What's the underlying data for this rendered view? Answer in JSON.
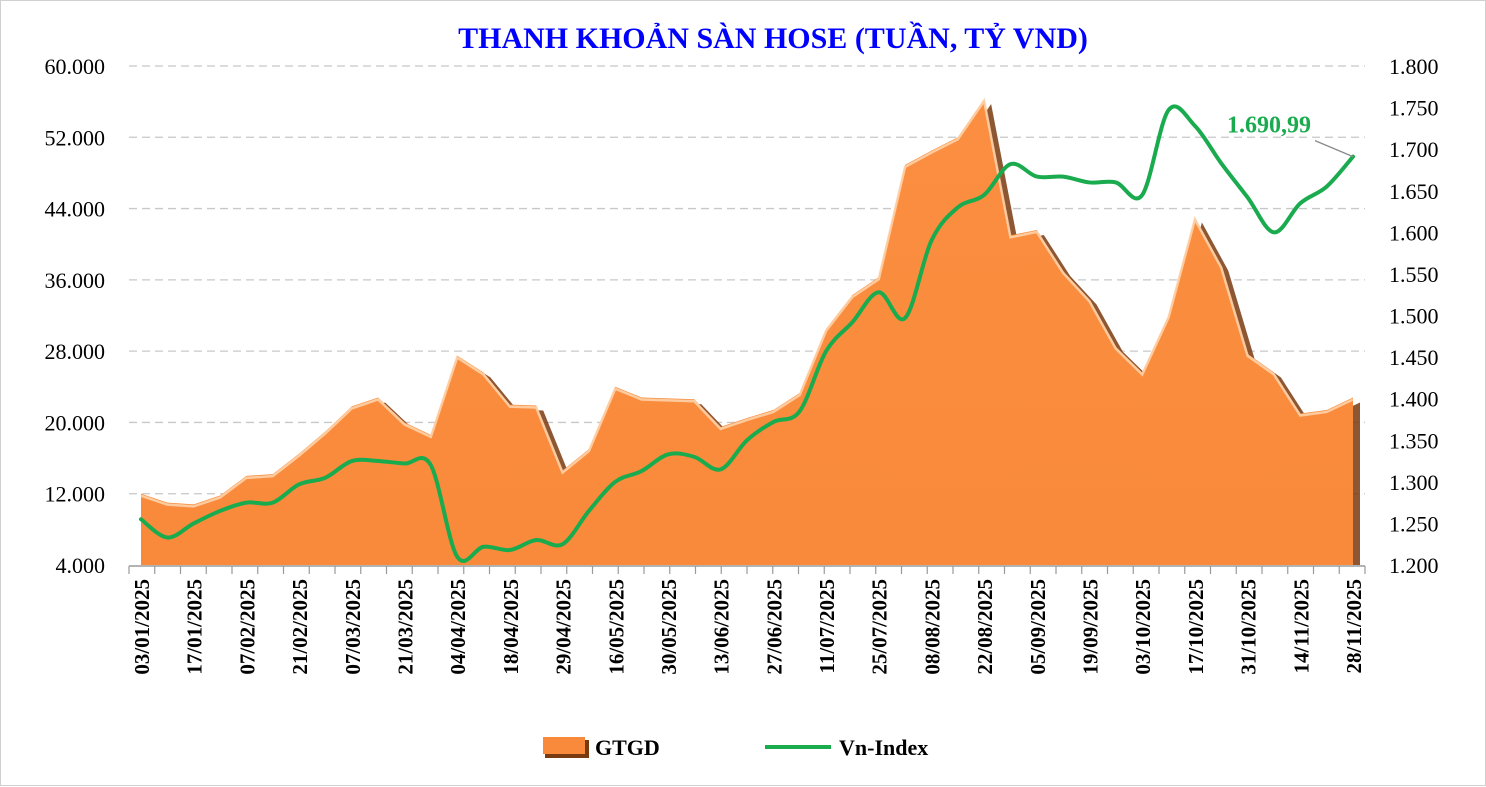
{
  "chart_data": {
    "type": "area",
    "title": "THANH KHOẢN SÀN HOSE (TUẦN, TỶ VND)",
    "colors": {
      "area": "#f98a3c",
      "area_dark": "#7a3a10",
      "line": "#1aab4f",
      "title": "#0000ff",
      "grid": "#c8c8c8"
    },
    "grid": true,
    "legend_position": "bottom",
    "left_axis": {
      "min": 4000,
      "max": 60000,
      "ticks": [
        "4.000",
        "12.000",
        "20.000",
        "28.000",
        "36.000",
        "44.000",
        "52.000",
        "60.000"
      ]
    },
    "right_axis": {
      "min": 1200,
      "max": 1800,
      "ticks": [
        "1.200",
        "1.250",
        "1.300",
        "1.350",
        "1.400",
        "1.450",
        "1.500",
        "1.550",
        "1.600",
        "1.650",
        "1.700",
        "1.750",
        "1.800"
      ]
    },
    "x_tick_labels": [
      "03/01/2025",
      "17/01/2025",
      "07/02/2025",
      "21/02/2025",
      "07/03/2025",
      "21/03/2025",
      "04/04/2025",
      "18/04/2025",
      "29/04/2025",
      "16/05/2025",
      "30/05/2025",
      "13/06/2025",
      "27/06/2025",
      "11/07/2025",
      "25/07/2025",
      "08/08/2025",
      "22/08/2025",
      "05/09/2025",
      "19/09/2025",
      "03/10/2025",
      "17/10/2025",
      "31/10/2025",
      "14/11/2025",
      "28/11/2025"
    ],
    "series": [
      {
        "name": "GTGD",
        "type": "area",
        "values": [
          12000,
          11000,
          10800,
          11800,
          14000,
          14200,
          16500,
          19000,
          21800,
          22800,
          20000,
          18600,
          27500,
          25600,
          22000,
          21900,
          14600,
          17000,
          24000,
          22800,
          22700,
          22600,
          19500,
          20500,
          21400,
          23300,
          30500,
          34300,
          36300,
          48900,
          50500,
          52000,
          56300,
          41000,
          41600,
          37000,
          33800,
          28500,
          25600,
          32000,
          43000,
          37600,
          27700,
          25600,
          21000,
          21400,
          22800
        ]
      },
      {
        "name": "Vn-Index",
        "type": "line",
        "values": [
          1255,
          1233,
          1250,
          1265,
          1275,
          1275,
          1297,
          1305,
          1325,
          1325,
          1322,
          1320,
          1210,
          1222,
          1218,
          1230,
          1225,
          1265,
          1300,
          1313,
          1333,
          1330,
          1315,
          1350,
          1372,
          1385,
          1457,
          1492,
          1528,
          1497,
          1590,
          1630,
          1645,
          1682,
          1667,
          1667,
          1660,
          1660,
          1645,
          1747,
          1728,
          1683,
          1642,
          1600,
          1635,
          1655,
          1690.99
        ]
      }
    ],
    "annotations": [
      {
        "text": "1.690,99"
      }
    ]
  }
}
